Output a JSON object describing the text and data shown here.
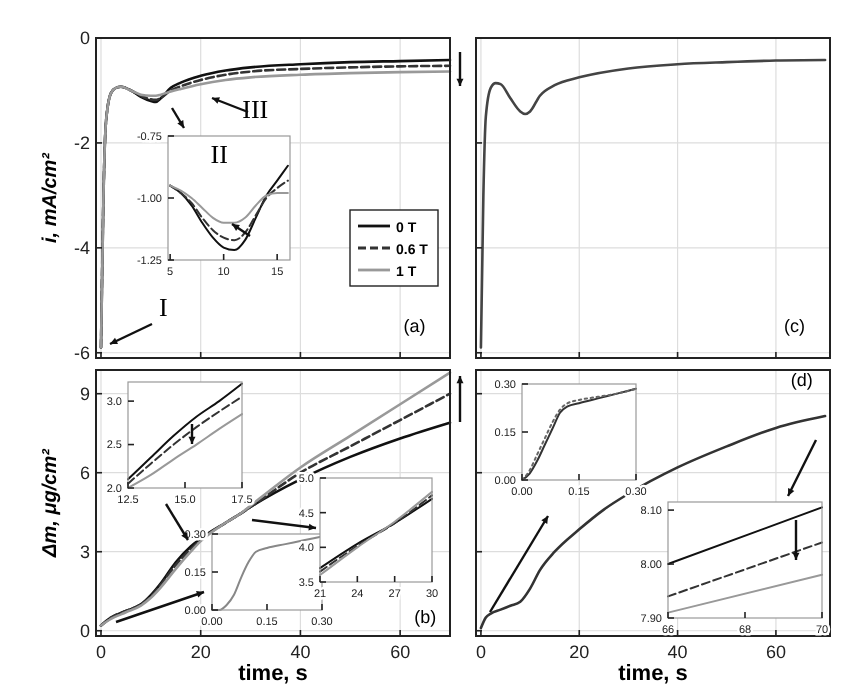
{
  "chart_data": [
    {
      "type": "line",
      "ylabel": "i, mA/cm²",
      "x": [
        0,
        0.5,
        1,
        2,
        3,
        4,
        6,
        8,
        10,
        11,
        12,
        14,
        16,
        20,
        25,
        30,
        40,
        50,
        60,
        70
      ],
      "xlim": [
        -1,
        70
      ],
      "ylim": [
        -6.1,
        0
      ],
      "xticks": [
        0,
        20,
        40,
        60
      ],
      "yticks": [
        -6,
        -4,
        -2,
        0
      ],
      "tick_labels": "y",
      "grid": true,
      "legend": "right",
      "annotations": [
        "I",
        "III",
        "(a)"
      ],
      "series": [
        {
          "name": "0 T",
          "color": "#111111",
          "line_style": "solid",
          "values": [
            -5.9,
            -3,
            -1.6,
            -1.05,
            -0.95,
            -0.93,
            -1.0,
            -1.12,
            -1.2,
            -1.22,
            -1.15,
            -0.95,
            -0.85,
            -0.72,
            -0.62,
            -0.56,
            -0.5,
            -0.46,
            -0.44,
            -0.42
          ]
        },
        {
          "name": "0.6 T",
          "color": "#333333",
          "line_style": "dashed",
          "values": [
            -5.9,
            -3,
            -1.6,
            -1.05,
            -0.95,
            -0.93,
            -1.0,
            -1.1,
            -1.17,
            -1.18,
            -1.14,
            -1.0,
            -0.92,
            -0.8,
            -0.7,
            -0.64,
            -0.59,
            -0.56,
            -0.54,
            -0.53
          ]
        },
        {
          "name": "1 T",
          "color": "#999999",
          "line_style": "solid",
          "values": [
            -5.9,
            -3,
            -1.6,
            -1.05,
            -0.95,
            -0.93,
            -1.0,
            -1.08,
            -1.1,
            -1.1,
            -1.08,
            -1.02,
            -0.97,
            -0.88,
            -0.8,
            -0.75,
            -0.7,
            -0.67,
            -0.65,
            -0.64
          ]
        }
      ]
    },
    {
      "type": "line",
      "x": [
        5,
        6,
        7,
        8,
        9,
        10,
        11,
        12,
        13,
        14,
        15,
        16
      ],
      "xlim": [
        4.8,
        16.2
      ],
      "ylim": [
        -1.25,
        -0.75
      ],
      "xticks": [
        5,
        10,
        15
      ],
      "yticks": [
        {
          "value": -1.25,
          "label": "-1.25"
        },
        {
          "value": -1,
          "label": "-1.00"
        },
        {
          "value": -0.75,
          "label": "-0.75"
        }
      ],
      "annotations": [
        "II"
      ],
      "series": [
        {
          "color": "#111111",
          "line_style": "solid",
          "values": [
            -0.95,
            -0.98,
            -1.03,
            -1.1,
            -1.16,
            -1.2,
            -1.21,
            -1.17,
            -1.08,
            -0.99,
            -0.93,
            -0.87
          ]
        },
        {
          "color": "#333333",
          "line_style": "dashed",
          "values": [
            -0.95,
            -0.98,
            -1.02,
            -1.08,
            -1.13,
            -1.16,
            -1.17,
            -1.14,
            -1.07,
            -1.0,
            -0.96,
            -0.93
          ]
        },
        {
          "color": "#999999",
          "line_style": "solid",
          "values": [
            -0.95,
            -0.97,
            -1.0,
            -1.04,
            -1.08,
            -1.1,
            -1.1,
            -1.08,
            -1.03,
            -0.99,
            -0.98,
            -0.98
          ]
        }
      ]
    },
    {
      "type": "line",
      "x": [
        0,
        0.5,
        1,
        2,
        3,
        4,
        6,
        8,
        9,
        10,
        12,
        15,
        20,
        30,
        40,
        50,
        60,
        70
      ],
      "xlim": [
        -1,
        71
      ],
      "ylim": [
        -6.1,
        0
      ],
      "xticks": [
        0,
        20,
        40,
        60
      ],
      "yticks": [
        -6,
        -4,
        -2,
        0
      ],
      "tick_labels": false,
      "grid": true,
      "annotations": [
        "(c)"
      ],
      "series": [
        {
          "color": "#444444",
          "line_style": "solid",
          "values": [
            -5.9,
            -3,
            -1.5,
            -0.95,
            -0.86,
            -0.88,
            -1.15,
            -1.4,
            -1.45,
            -1.4,
            -1.1,
            -0.9,
            -0.75,
            -0.58,
            -0.5,
            -0.46,
            -0.43,
            -0.42
          ]
        }
      ]
    },
    {
      "type": "line",
      "xlabel": "time, s",
      "ylabel": "Δm, μg/cm²",
      "x": [
        0,
        2,
        5,
        8,
        10,
        12,
        15,
        18,
        20,
        25,
        28,
        30,
        40,
        50,
        60,
        70
      ],
      "xlim": [
        -1,
        70
      ],
      "ylim": [
        -0.2,
        9.9
      ],
      "xticks": [
        0,
        20,
        40,
        60
      ],
      "yticks": [
        0,
        3,
        6,
        9
      ],
      "grid": true,
      "annotations": [
        "(b)"
      ],
      "series": [
        {
          "color": "#111111",
          "line_style": "solid",
          "values": [
            0.2,
            0.5,
            0.75,
            1.0,
            1.35,
            1.8,
            2.6,
            3.2,
            3.5,
            4.1,
            4.45,
            4.7,
            5.75,
            6.6,
            7.3,
            7.9
          ]
        },
        {
          "color": "#333333",
          "line_style": "dashed",
          "values": [
            0.2,
            0.5,
            0.75,
            1.0,
            1.3,
            1.75,
            2.5,
            3.1,
            3.45,
            4.1,
            4.45,
            4.7,
            6.0,
            7.0,
            8.0,
            9.0
          ]
        },
        {
          "color": "#999999",
          "line_style": "solid",
          "values": [
            0.2,
            0.45,
            0.7,
            0.95,
            1.25,
            1.65,
            2.35,
            3.0,
            3.4,
            4.1,
            4.45,
            4.75,
            6.2,
            7.4,
            8.6,
            9.8
          ]
        }
      ]
    },
    {
      "type": "line",
      "x": [
        12.5,
        13.5,
        14.5,
        15.5,
        16.5,
        17.5
      ],
      "xlim": [
        12.5,
        17.5
      ],
      "ylim": [
        2.0,
        3.22
      ],
      "xticks": [
        {
          "value": 12.5,
          "label": "12.5"
        },
        {
          "value": 15,
          "label": "15.0"
        },
        {
          "value": 17.5,
          "label": "17.5"
        }
      ],
      "yticks": [
        {
          "value": 2,
          "label": "2.0"
        },
        {
          "value": 2.5,
          "label": "2.5"
        },
        {
          "value": 3,
          "label": "3.0"
        }
      ],
      "series": [
        {
          "color": "#111111",
          "line_style": "solid",
          "values": [
            2.1,
            2.35,
            2.6,
            2.82,
            3.0,
            3.2
          ]
        },
        {
          "color": "#333333",
          "line_style": "dashed",
          "values": [
            2.05,
            2.28,
            2.5,
            2.7,
            2.88,
            3.05
          ]
        },
        {
          "color": "#999999",
          "line_style": "solid",
          "values": [
            2.0,
            2.15,
            2.33,
            2.5,
            2.68,
            2.85
          ]
        }
      ]
    },
    {
      "type": "line",
      "x": [
        0,
        0.02,
        0.04,
        0.06,
        0.08,
        0.1,
        0.12,
        0.15,
        0.2,
        0.25,
        0.3
      ],
      "xlim": [
        0,
        0.3
      ],
      "ylim": [
        0,
        0.3
      ],
      "xticks": [
        {
          "value": 0,
          "label": "0.00"
        },
        {
          "value": 0.15,
          "label": "0.15"
        },
        {
          "value": 0.3,
          "label": "0.30"
        }
      ],
      "yticks": [
        {
          "value": 0,
          "label": "0.00"
        },
        {
          "value": 0.15,
          "label": "0.15"
        },
        {
          "value": 0.3,
          "label": "0.30"
        }
      ],
      "series": [
        {
          "color": "#888888",
          "line_style": "solid",
          "values": [
            0,
            0.0,
            0.02,
            0.06,
            0.13,
            0.19,
            0.23,
            0.245,
            0.26,
            0.275,
            0.29
          ]
        }
      ]
    },
    {
      "type": "line",
      "x": [
        21,
        24,
        27,
        30
      ],
      "xlim": [
        21,
        30
      ],
      "ylim": [
        3.5,
        5.0
      ],
      "xticks": [
        21,
        24,
        27,
        30
      ],
      "yticks": [
        {
          "value": 3.5,
          "label": "3.5"
        },
        {
          "value": 4,
          "label": "4.0"
        },
        {
          "value": 4.5,
          "label": "4.5"
        },
        {
          "value": 5,
          "label": "5.0"
        }
      ],
      "series": [
        {
          "color": "#111111",
          "line_style": "solid",
          "values": [
            3.7,
            4.05,
            4.35,
            4.7
          ]
        },
        {
          "color": "#333333",
          "line_style": "dashed",
          "values": [
            3.65,
            4.02,
            4.35,
            4.75
          ]
        },
        {
          "color": "#999999",
          "line_style": "solid",
          "values": [
            3.6,
            4.0,
            4.37,
            4.8
          ]
        }
      ]
    },
    {
      "type": "line",
      "xlabel": "time, s",
      "x": [
        0,
        1,
        2,
        4,
        6,
        8,
        10,
        12,
        15,
        20,
        25,
        30,
        40,
        50,
        60,
        70
      ],
      "xlim": [
        -1,
        71
      ],
      "ylim": [
        -0.2,
        9.9
      ],
      "xticks": [
        0,
        20,
        40,
        60
      ],
      "yticks": [
        0,
        3,
        6,
        9
      ],
      "tick_labels": "x",
      "grid": true,
      "annotations": [
        "(d)"
      ],
      "series": [
        {
          "color": "#333333",
          "line_style": "solid",
          "values": [
            0.1,
            0.5,
            0.65,
            0.8,
            0.95,
            1.1,
            1.6,
            2.3,
            3.0,
            3.85,
            4.6,
            5.2,
            6.2,
            7.0,
            7.7,
            8.15
          ]
        }
      ]
    },
    {
      "type": "line",
      "x": [
        0,
        0.02,
        0.04,
        0.06,
        0.08,
        0.1,
        0.12,
        0.15,
        0.2,
        0.25,
        0.3
      ],
      "xlim": [
        0,
        0.3
      ],
      "ylim": [
        0,
        0.3
      ],
      "xticks": [
        {
          "value": 0,
          "label": "0.00"
        },
        {
          "value": 0.15,
          "label": "0.15"
        },
        {
          "value": 0.3,
          "label": "0.30"
        }
      ],
      "yticks": [
        {
          "value": 0,
          "label": "0.00"
        },
        {
          "value": 0.15,
          "label": "0.15"
        },
        {
          "value": 0.3,
          "label": "0.30"
        }
      ],
      "series": [
        {
          "color": "#333333",
          "line_style": "solid",
          "values": [
            0,
            0.02,
            0.06,
            0.11,
            0.16,
            0.21,
            0.23,
            0.24,
            0.255,
            0.27,
            0.285
          ]
        },
        {
          "color": "#666666",
          "line_style": "dotted",
          "values": [
            0,
            0.03,
            0.08,
            0.13,
            0.18,
            0.22,
            0.24,
            0.25,
            0.26,
            0.27,
            0.285
          ]
        }
      ]
    },
    {
      "type": "line",
      "x": [
        66,
        70
      ],
      "xlim": [
        66,
        70
      ],
      "ylim": [
        7.9,
        8.115
      ],
      "xticks": [
        66,
        68,
        70
      ],
      "yticks": [
        {
          "value": 7.9,
          "label": "7.90"
        },
        {
          "value": 8,
          "label": "8.00"
        },
        {
          "value": 8.1,
          "label": "8.10"
        }
      ],
      "series": [
        {
          "color": "#111111",
          "line_style": "solid",
          "values": [
            8.0,
            8.105
          ]
        },
        {
          "color": "#333333",
          "line_style": "dashed",
          "values": [
            7.94,
            8.04
          ]
        },
        {
          "color": "#999999",
          "line_style": "solid",
          "values": [
            7.91,
            7.98
          ]
        }
      ]
    }
  ]
}
